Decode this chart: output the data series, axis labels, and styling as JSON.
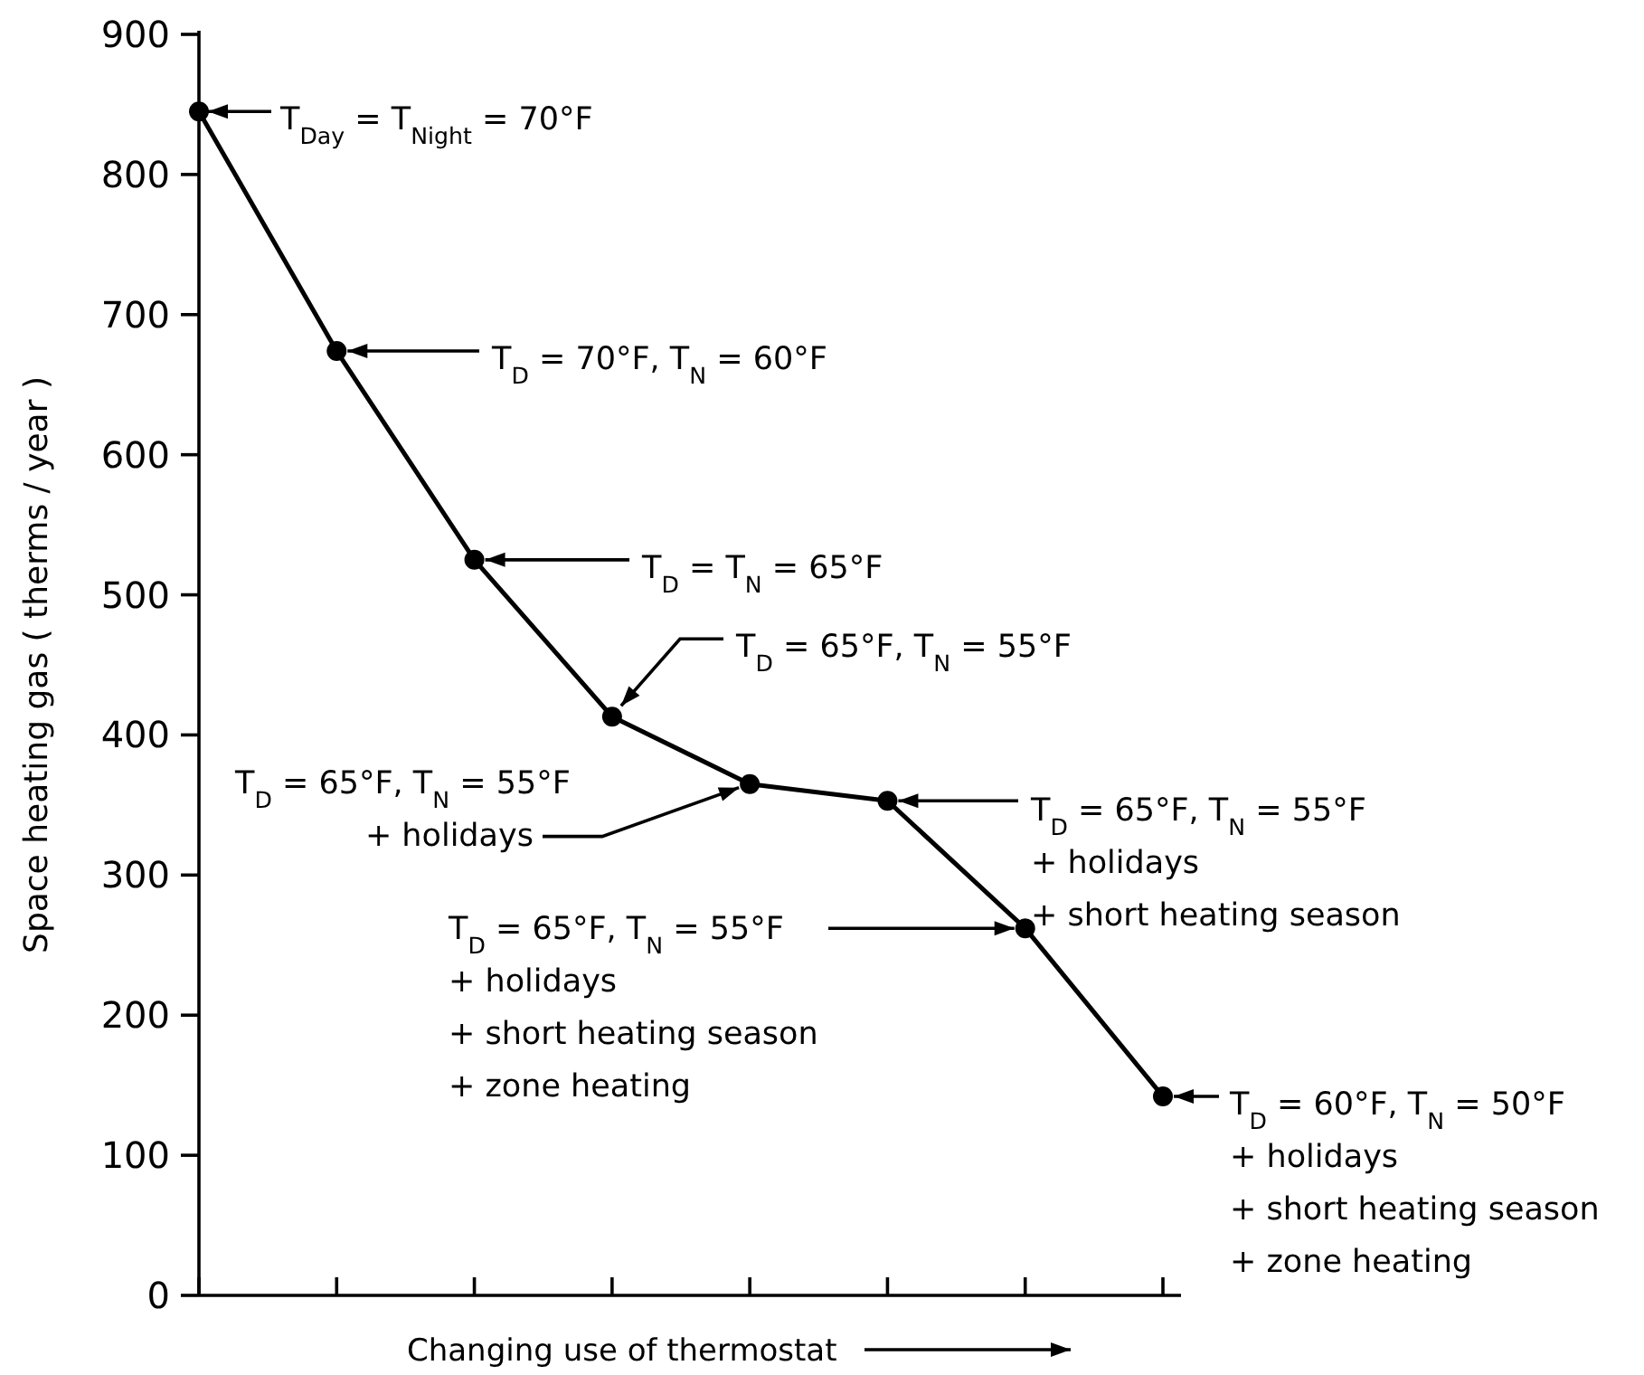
{
  "chart_data": {
    "type": "line",
    "xlabel": "Changing use of thermostat",
    "ylabel": "Space heating gas ( therms / year )",
    "categories": [
      null,
      null,
      null,
      null,
      null,
      null,
      null,
      null
    ],
    "series": [
      {
        "color": "#000000",
        "values": [
          845,
          674,
          525,
          413,
          365,
          353,
          262,
          142
        ]
      }
    ],
    "ylim": [
      0,
      900
    ],
    "yticks": [
      0,
      100,
      200,
      300,
      400,
      500,
      600,
      700,
      800,
      900
    ],
    "tick_labels": "y",
    "marker": "circle",
    "line_style": "solid",
    "grid": false,
    "annotations": [
      "T$_{Day}$ = T$_{Night}$ = 70°F",
      "T$_{D}$ = 70°F, T$_{N}$ = 60°F",
      "T$_{D}$ = T$_{N}$ = 65°F",
      "T$_{D}$ = 65°F, T$_{N}$ = 55°F",
      "T$_{D}$ = 65°F, T$_{N}$ = 55°F\n+ holidays",
      "T$_{D}$ = 65°F, T$_{N}$ = 55°F\n+ holidays\n+ short heating season",
      "T$_{D}$ = 65°F, T$_{N}$ = 55°F\n+ holidays\n+ short heating season\n+ zone heating",
      "T$_{D}$ = 60°F, T$_{N}$ = 50°F\n+ holidays\n+ short heating season\n+ zone heating"
    ]
  }
}
